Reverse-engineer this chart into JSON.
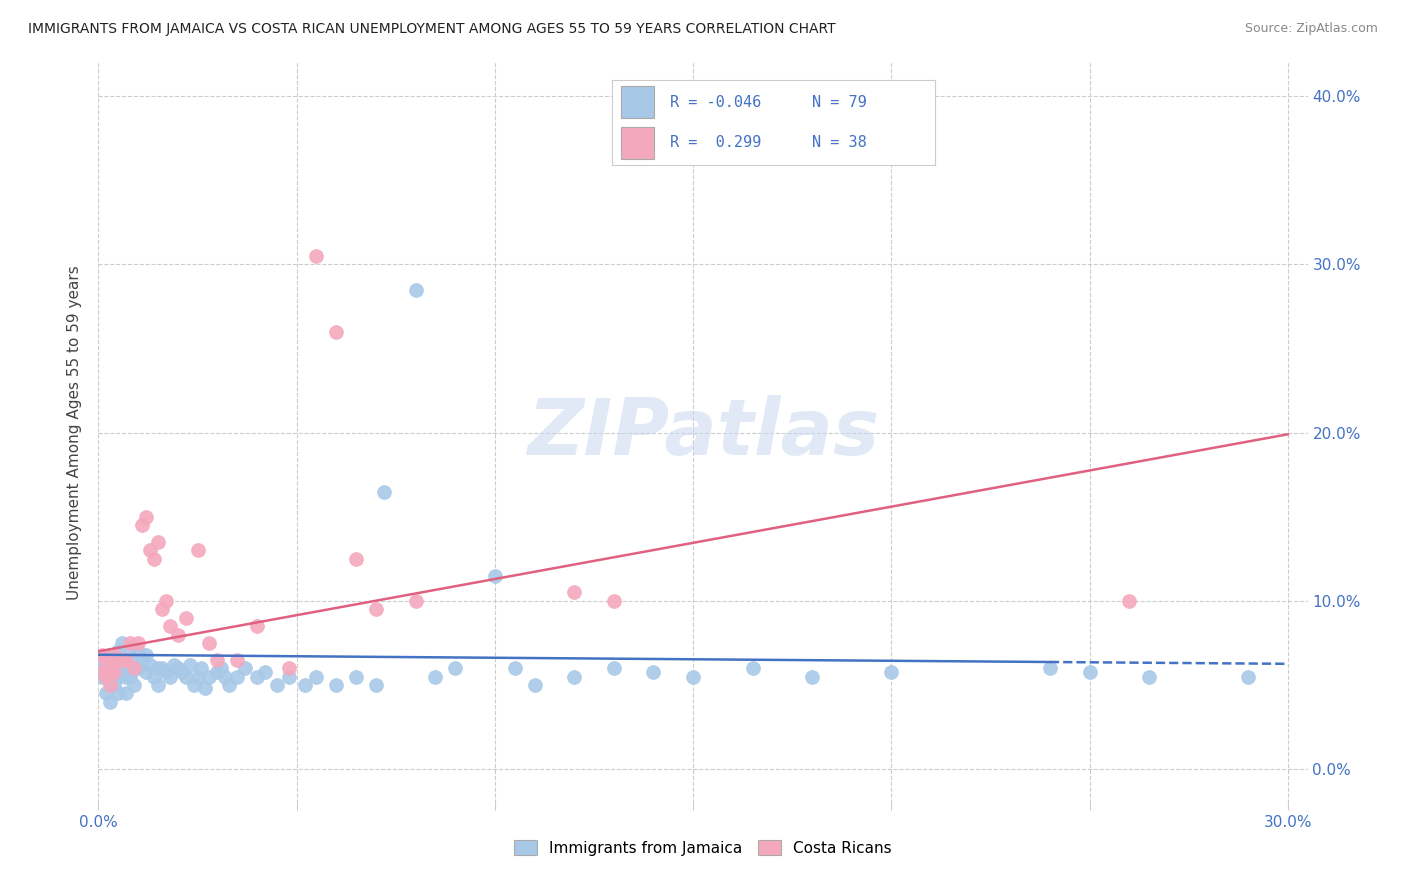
{
  "title": "IMMIGRANTS FROM JAMAICA VS COSTA RICAN UNEMPLOYMENT AMONG AGES 55 TO 59 YEARS CORRELATION CHART",
  "source": "Source: ZipAtlas.com",
  "ylabel_label": "Unemployment Among Ages 55 to 59 years",
  "legend_label1": "Immigrants from Jamaica",
  "legend_label2": "Costa Ricans",
  "R1": "-0.046",
  "N1": "79",
  "R2": "0.299",
  "N2": "38",
  "scatter_color1": "#a8c8e8",
  "scatter_color2": "#f4a8be",
  "line_color1": "#4472c4",
  "line_color2": "#e06080",
  "xlim": [
    0.0,
    0.305
  ],
  "ylim": [
    -0.02,
    0.42
  ],
  "x_ticks": [
    0.0,
    0.05,
    0.1,
    0.15,
    0.2,
    0.25,
    0.3
  ],
  "y_ticks": [
    0.0,
    0.1,
    0.2,
    0.3,
    0.4
  ],
  "jamaica_x": [
    0.001,
    0.001,
    0.002,
    0.002,
    0.003,
    0.003,
    0.003,
    0.004,
    0.004,
    0.004,
    0.005,
    0.005,
    0.005,
    0.005,
    0.006,
    0.006,
    0.007,
    0.007,
    0.007,
    0.008,
    0.008,
    0.008,
    0.009,
    0.009,
    0.01,
    0.01,
    0.011,
    0.012,
    0.012,
    0.013,
    0.014,
    0.015,
    0.015,
    0.016,
    0.017,
    0.018,
    0.019,
    0.02,
    0.021,
    0.022,
    0.023,
    0.024,
    0.025,
    0.026,
    0.027,
    0.028,
    0.03,
    0.031,
    0.032,
    0.033,
    0.035,
    0.037,
    0.04,
    0.042,
    0.045,
    0.048,
    0.052,
    0.055,
    0.06,
    0.065,
    0.07,
    0.072,
    0.08,
    0.085,
    0.09,
    0.1,
    0.105,
    0.11,
    0.12,
    0.13,
    0.14,
    0.15,
    0.165,
    0.18,
    0.2,
    0.24,
    0.25,
    0.265,
    0.29
  ],
  "jamaica_y": [
    0.065,
    0.055,
    0.06,
    0.045,
    0.068,
    0.055,
    0.04,
    0.065,
    0.06,
    0.05,
    0.07,
    0.06,
    0.055,
    0.045,
    0.075,
    0.06,
    0.065,
    0.055,
    0.045,
    0.072,
    0.065,
    0.055,
    0.06,
    0.05,
    0.07,
    0.06,
    0.065,
    0.068,
    0.058,
    0.062,
    0.055,
    0.06,
    0.05,
    0.06,
    0.058,
    0.055,
    0.062,
    0.06,
    0.058,
    0.055,
    0.062,
    0.05,
    0.055,
    0.06,
    0.048,
    0.055,
    0.058,
    0.06,
    0.055,
    0.05,
    0.055,
    0.06,
    0.055,
    0.058,
    0.05,
    0.055,
    0.05,
    0.055,
    0.05,
    0.055,
    0.05,
    0.165,
    0.285,
    0.055,
    0.06,
    0.115,
    0.06,
    0.05,
    0.055,
    0.06,
    0.058,
    0.055,
    0.06,
    0.055,
    0.058,
    0.06,
    0.058,
    0.055,
    0.055
  ],
  "costarica_x": [
    0.001,
    0.001,
    0.002,
    0.002,
    0.003,
    0.003,
    0.004,
    0.004,
    0.005,
    0.006,
    0.007,
    0.008,
    0.009,
    0.01,
    0.011,
    0.012,
    0.013,
    0.014,
    0.015,
    0.016,
    0.017,
    0.018,
    0.02,
    0.022,
    0.025,
    0.028,
    0.03,
    0.035,
    0.04,
    0.048,
    0.055,
    0.06,
    0.065,
    0.07,
    0.08,
    0.12,
    0.13,
    0.26
  ],
  "costarica_y": [
    0.068,
    0.058,
    0.065,
    0.055,
    0.06,
    0.05,
    0.068,
    0.058,
    0.065,
    0.065,
    0.065,
    0.075,
    0.06,
    0.075,
    0.145,
    0.15,
    0.13,
    0.125,
    0.135,
    0.095,
    0.1,
    0.085,
    0.08,
    0.09,
    0.13,
    0.075,
    0.065,
    0.065,
    0.085,
    0.06,
    0.305,
    0.26,
    0.125,
    0.095,
    0.1,
    0.105,
    0.1,
    0.1
  ]
}
